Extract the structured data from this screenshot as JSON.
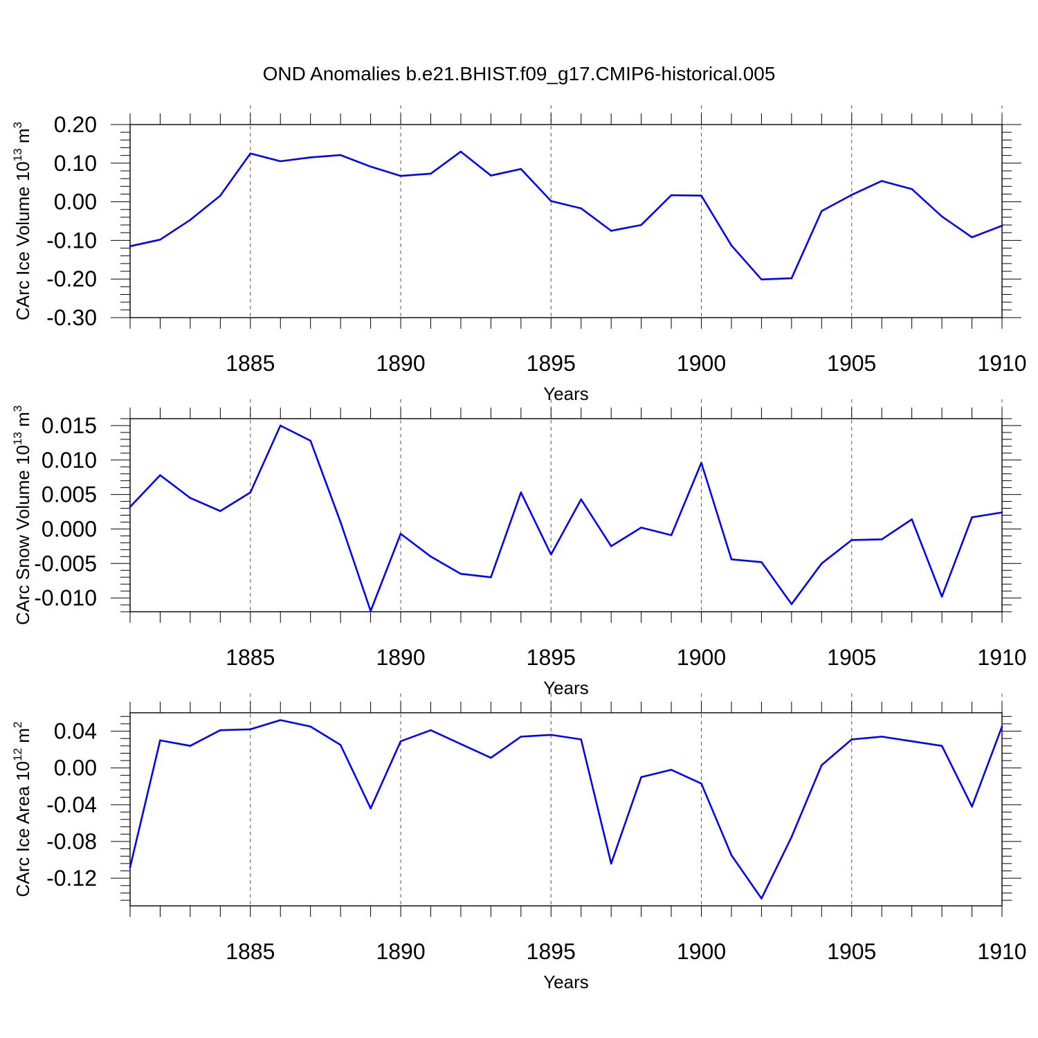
{
  "title": "OND Anomalies b.e21.BHIST.f09_g17.CMIP6-historical.005",
  "colors": {
    "line": "#0000ff",
    "axes": "#000000",
    "grid": "#555555"
  },
  "chart_data": [
    {
      "type": "line",
      "ylabel": {
        "text": "CArc Ice Volume 10",
        "exp": "13",
        "unit": " m",
        "unit_exp": "3"
      },
      "xlabel": "Years",
      "xlim": [
        1881,
        1910
      ],
      "ylim": [
        -0.3,
        0.2
      ],
      "x_ticks": [
        "1885",
        "1890",
        "1895",
        "1900",
        "1905",
        "1910"
      ],
      "y_ticks": [
        "0.20",
        "0.10",
        "0.00",
        "-0.10",
        "-0.20",
        "-0.30"
      ],
      "grid": "vertical dashed at major x ticks",
      "x": [
        1881,
        1882,
        1883,
        1884,
        1885,
        1886,
        1887,
        1888,
        1889,
        1890,
        1891,
        1892,
        1893,
        1894,
        1895,
        1896,
        1897,
        1898,
        1899,
        1900,
        1901,
        1902,
        1903,
        1904,
        1905,
        1906,
        1907,
        1908,
        1909,
        1910
      ],
      "values": [
        -0.115,
        -0.098,
        -0.047,
        0.016,
        0.125,
        0.105,
        0.115,
        0.121,
        0.091,
        0.067,
        0.073,
        0.13,
        0.068,
        0.085,
        0.002,
        -0.017,
        -0.075,
        -0.06,
        0.017,
        0.016,
        -0.113,
        -0.201,
        -0.198,
        -0.024,
        0.018,
        0.054,
        0.033,
        -0.038,
        -0.092,
        -0.062
      ]
    },
    {
      "type": "line",
      "ylabel": {
        "text": "CArc Snow Volume 10",
        "exp": "13",
        "unit": " m",
        "unit_exp": "3"
      },
      "xlabel": "Years",
      "xlim": [
        1881,
        1910
      ],
      "ylim": [
        -0.012,
        0.016
      ],
      "x_ticks": [
        "1885",
        "1890",
        "1895",
        "1900",
        "1905",
        "1910"
      ],
      "y_ticks": [
        "0.015",
        "0.010",
        "0.005",
        "0.000",
        "-0.005",
        "-0.010"
      ],
      "grid": "vertical dashed at major x ticks",
      "x": [
        1881,
        1882,
        1883,
        1884,
        1885,
        1886,
        1887,
        1888,
        1889,
        1890,
        1891,
        1892,
        1893,
        1894,
        1895,
        1896,
        1897,
        1898,
        1899,
        1900,
        1901,
        1902,
        1903,
        1904,
        1905,
        1906,
        1907,
        1908,
        1909,
        1910
      ],
      "values": [
        0.0032,
        0.0078,
        0.0045,
        0.0026,
        0.0053,
        0.015,
        0.0128,
        0.001,
        -0.0119,
        -0.0007,
        -0.004,
        -0.0065,
        -0.007,
        0.0053,
        -0.0037,
        0.0043,
        -0.0025,
        0.0002,
        -0.0009,
        0.0096,
        -0.0044,
        -0.0048,
        -0.0109,
        -0.005,
        -0.0016,
        -0.0015,
        0.0014,
        -0.0098,
        0.0017,
        0.0024
      ]
    },
    {
      "type": "line",
      "ylabel": {
        "text": "CArc Ice Area 10",
        "exp": "12",
        "unit": " m",
        "unit_exp": "2"
      },
      "xlabel": "Years",
      "xlim": [
        1881,
        1910
      ],
      "ylim": [
        -0.15,
        0.06
      ],
      "x_ticks": [
        "1885",
        "1890",
        "1895",
        "1900",
        "1905",
        "1910"
      ],
      "y_ticks": [
        "0.04",
        "0.00",
        "-0.04",
        "-0.08",
        "-0.12"
      ],
      "grid": "vertical dashed at major x ticks",
      "x": [
        1881,
        1882,
        1883,
        1884,
        1885,
        1886,
        1887,
        1888,
        1889,
        1890,
        1891,
        1892,
        1893,
        1894,
        1895,
        1896,
        1897,
        1898,
        1899,
        1900,
        1901,
        1902,
        1903,
        1904,
        1905,
        1906,
        1907,
        1908,
        1909,
        1910
      ],
      "values": [
        -0.108,
        0.03,
        0.024,
        0.041,
        0.042,
        0.052,
        0.045,
        0.025,
        -0.044,
        0.029,
        0.041,
        0.026,
        0.011,
        0.034,
        0.036,
        0.031,
        -0.104,
        -0.01,
        -0.002,
        -0.017,
        -0.095,
        -0.142,
        -0.075,
        0.003,
        0.031,
        0.034,
        0.029,
        0.024,
        -0.042,
        0.045
      ]
    }
  ]
}
